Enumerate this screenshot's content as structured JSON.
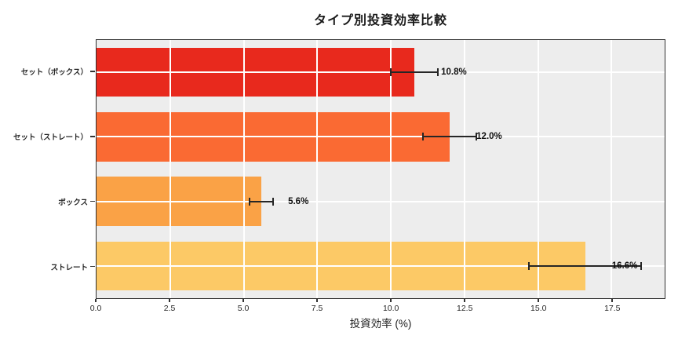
{
  "chart_data": {
    "type": "bar",
    "orientation": "horizontal",
    "title": "タイプ別投資効率比較",
    "xlabel": "投資効率 (%)",
    "categories": [
      "セット（ボックス）",
      "セット（ストレート）",
      "ボックス",
      "ストレート"
    ],
    "values": [
      10.8,
      12.0,
      5.6,
      16.6
    ],
    "errors": [
      0.8,
      0.9,
      0.4,
      1.9
    ],
    "value_labels": [
      "10.8%",
      "12.0%",
      "5.6%",
      "16.6%"
    ],
    "bar_colors": [
      "#e8291d",
      "#fa6a33",
      "#faa246",
      "#fcc966"
    ],
    "xlim": [
      0,
      19.3
    ],
    "xticks": [
      0.0,
      2.5,
      5.0,
      7.5,
      10.0,
      12.5,
      15.0,
      17.5
    ],
    "xtick_labels": [
      "0.0",
      "2.5",
      "5.0",
      "7.5",
      "10.0",
      "12.5",
      "15.0",
      "17.5"
    ],
    "grid": true,
    "grid_color": "#ffffff",
    "plot_background": "#ededed",
    "error_bar_color": "#262626",
    "label_offset_units": 0.8
  }
}
